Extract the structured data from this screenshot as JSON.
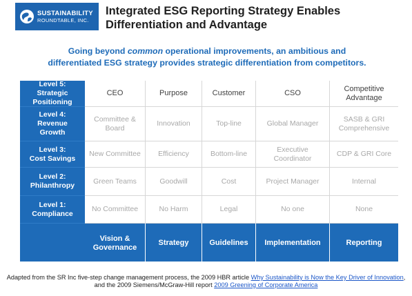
{
  "logo": {
    "line1": "SUSTAINABILITY",
    "line2": "ROUNDTABLE, INC."
  },
  "title": {
    "line1": "Integrated ESG Reporting Strategy Enables",
    "line2": "Differentiation and Advantage"
  },
  "subtitle": {
    "part1": "Going beyond ",
    "emphasis": "common",
    "part2": " operational improvements, an ambitious and",
    "line2": "differentiated ESG strategy provides strategic differentiation from competitors."
  },
  "matrix": {
    "rows": [
      {
        "level": [
          "Level 5:",
          "Strategic",
          "Positioning"
        ],
        "cells": [
          "CEO",
          "Purpose",
          "Customer",
          "CSO",
          "Competitive Advantage"
        ]
      },
      {
        "level": [
          "Level 4:",
          "Revenue",
          "Growth"
        ],
        "cells": [
          "Committee & Board",
          "Innovation",
          "Top-line",
          "Global Manager",
          "SASB & GRI Comprehensive"
        ]
      },
      {
        "level": [
          "Level 3:",
          "Cost Savings"
        ],
        "cells": [
          "New Committee",
          "Efficiency",
          "Bottom-line",
          "Executive Coordinator",
          "CDP & GRI Core"
        ]
      },
      {
        "level": [
          "Level 2:",
          "Philanthropy"
        ],
        "cells": [
          "Green Teams",
          "Goodwill",
          "Cost",
          "Project Manager",
          "Internal"
        ]
      },
      {
        "level": [
          "Level 1:",
          "Compliance"
        ],
        "cells": [
          "No Committee",
          "No Harm",
          "Legal",
          "No one",
          "None"
        ]
      }
    ],
    "columns": [
      "Vision & Governance",
      "Strategy",
      "Guidelines",
      "Implementation",
      "Reporting"
    ]
  },
  "footer": {
    "line1_text": "Adapted from the SR Inc five-step change management process, the 2009 HBR article ",
    "line1_link": "Why Sustainability is Now the Key Driver of Innovation",
    "line1_end": ",",
    "line2_text": "and the 2009 Siemens/McGraw-Hill report ",
    "line2_link": "2009 Greening of Corporate America"
  },
  "colors": {
    "accent": "#1e6bb8",
    "link": "#1a56c8",
    "muted_text": "#a8a8a8"
  }
}
